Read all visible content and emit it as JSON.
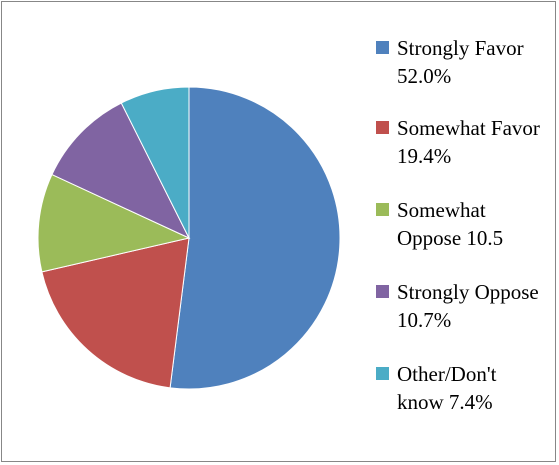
{
  "chart_data": {
    "type": "pie",
    "title": "",
    "start_angle_deg": 90,
    "direction": "clockwise",
    "slices": [
      {
        "label": "Strongly Favor 52.0%",
        "value": 52.0,
        "color": "#4F81BD"
      },
      {
        "label": "Somewhat Favor 19.4%",
        "value": 19.4,
        "color": "#C0504D"
      },
      {
        "label": "Somewhat Oppose 10.5",
        "value": 10.5,
        "color": "#9BBB59"
      },
      {
        "label": "Strongly Oppose 10.7%",
        "value": 10.7,
        "color": "#8064A2"
      },
      {
        "label": "Other/Don't know 7.4%",
        "value": 7.4,
        "color": "#4BACC6"
      }
    ],
    "legend_position": "right"
  }
}
